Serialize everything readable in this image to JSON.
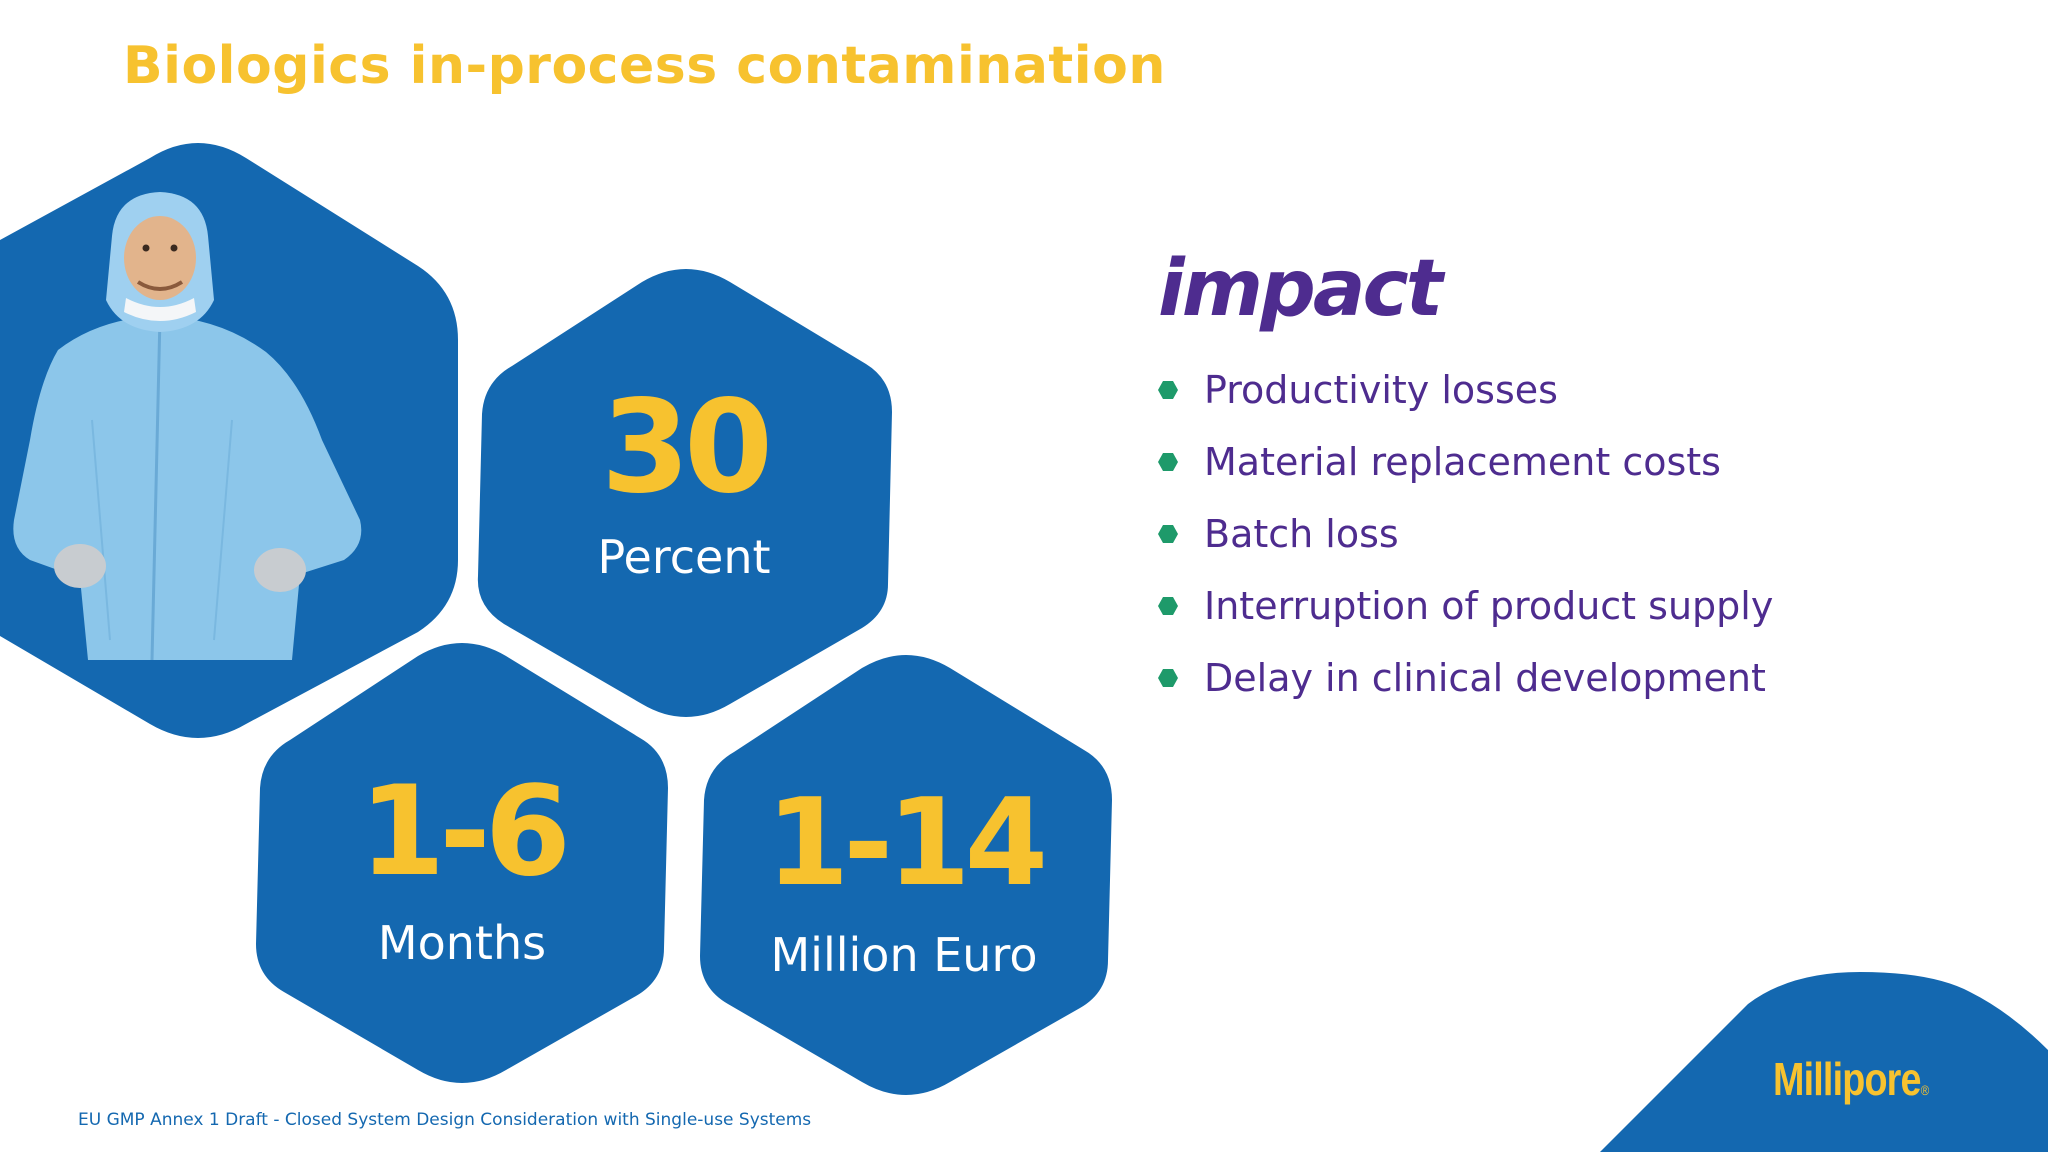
{
  "slide": {
    "title": "Biologics in-process contamination",
    "footer": "EU GMP Annex 1 Draft - Closed System Design Consideration with Single-use Systems"
  },
  "stats": [
    {
      "value": "30",
      "unit": "Percent"
    },
    {
      "value": "1-6",
      "unit": "Months"
    },
    {
      "value": "1-14",
      "unit": "Million Euro"
    }
  ],
  "impact": {
    "heading": "Impact",
    "items": [
      "Productivity losses",
      "Material replacement costs",
      "Batch loss",
      "Interruption of product supply",
      "Delay in clinical development"
    ]
  },
  "brand": {
    "logo_text": "Millipore",
    "registered_mark": "®"
  },
  "colors": {
    "hex_blue": "#1468b0",
    "accent_yellow": "#f7c22f",
    "impact_purple": "#4e2c8f",
    "bullet_green": "#1e9a6a"
  }
}
